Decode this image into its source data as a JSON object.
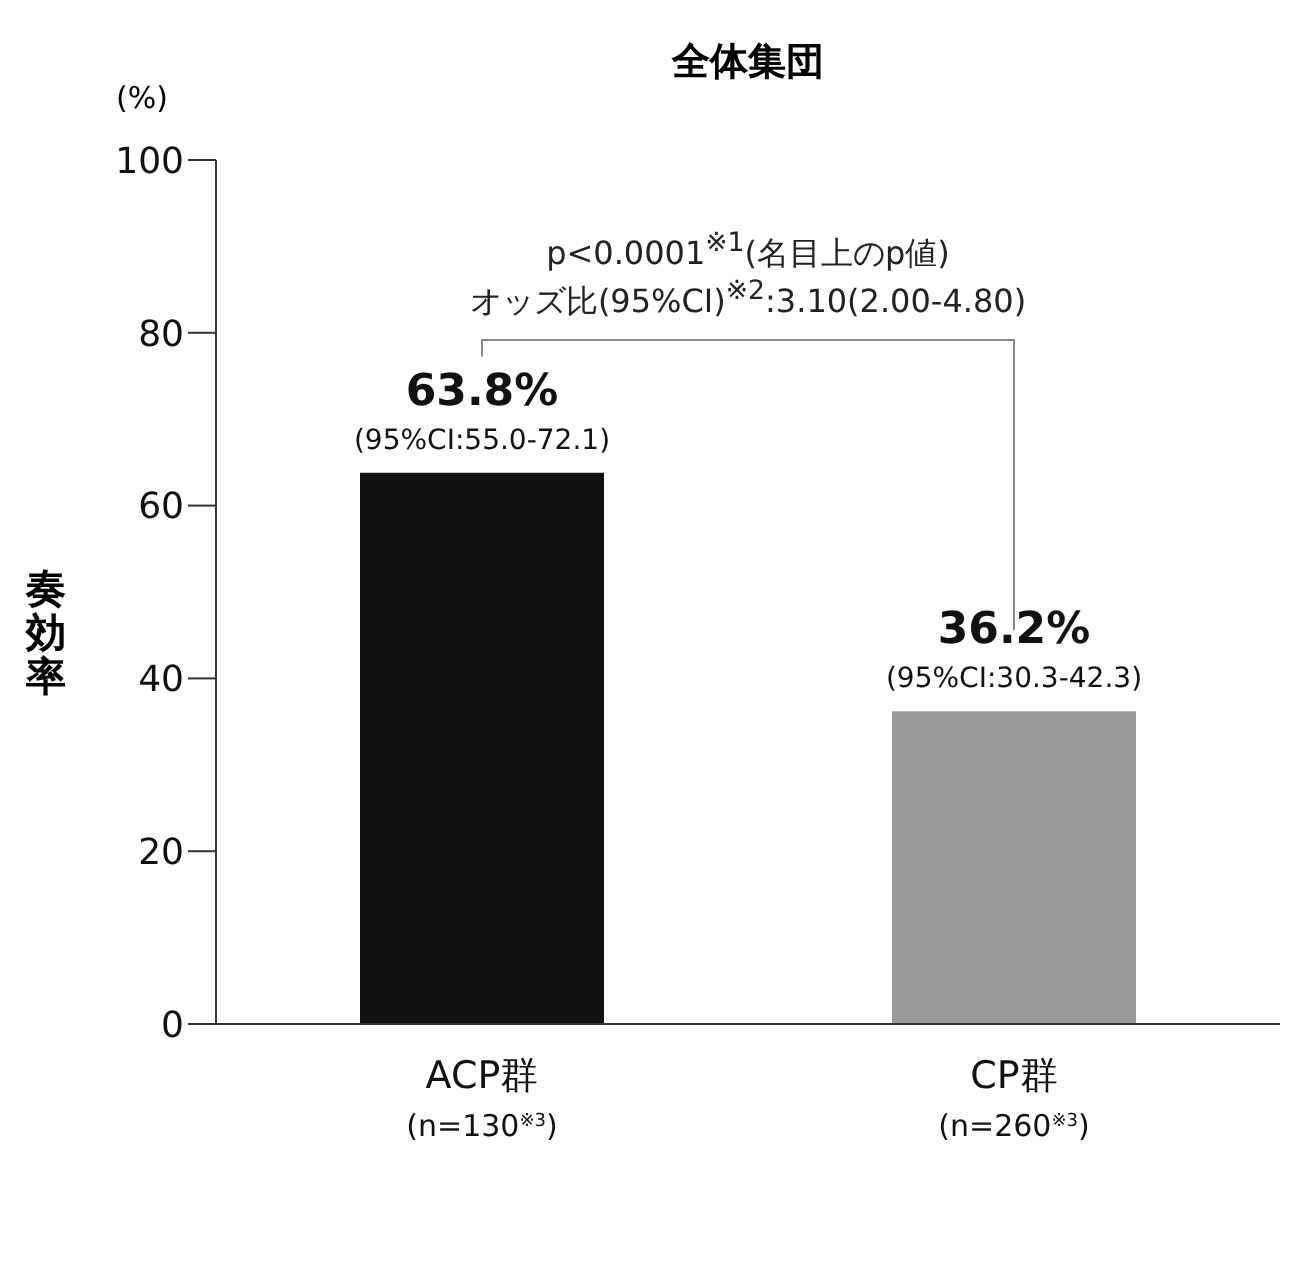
{
  "chart_data": {
    "type": "bar",
    "title": "全体集団",
    "ylabel": "奏効率",
    "categories": [
      "ACP群\n(n=130$^{※3}$)",
      "CP群\n(n=260$^{※3}$)"
    ],
    "values": [
      63.8,
      36.2
    ],
    "colors": [
      "#111111",
      "#999999"
    ],
    "value_labels": [
      "63.8%\n(95%CI:55.0-72.1)",
      "36.2%\n(95%CI:30.3-42.3)"
    ],
    "ylim": [
      0,
      100
    ],
    "yticks": [
      0,
      20,
      40,
      60,
      80,
      100
    ],
    "grid": false,
    "legend": false,
    "annotations": [
      "(%)",
      "p<0.0001$^{※1}$(名目上のp値)",
      "オッズ比(95%CI)$^{※2}$:3.10(2.00-4.80)"
    ]
  }
}
